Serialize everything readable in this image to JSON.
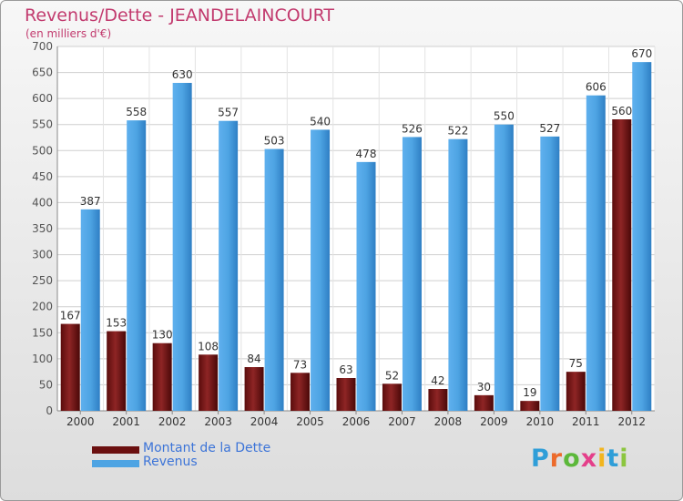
{
  "title": "Revenus/Dette - JEANDELAINCOURT",
  "subtitle": "(en milliers d'€)",
  "brand": {
    "letters": [
      "P",
      "r",
      "o",
      "x",
      "i",
      "t",
      "i"
    ],
    "colors": [
      "#2f9ed8",
      "#ec6a2b",
      "#5cb83a",
      "#e43f8a",
      "#f2b51d",
      "#2f9ed8",
      "#8cc63f"
    ]
  },
  "chart_data": {
    "type": "bar",
    "categories": [
      "2000",
      "2001",
      "2002",
      "2003",
      "2004",
      "2005",
      "2006",
      "2007",
      "2008",
      "2009",
      "2010",
      "2011",
      "2012"
    ],
    "series": [
      {
        "name": "Montant de la Dette",
        "color": "#7a1616",
        "values": [
          167,
          153,
          130,
          108,
          84,
          73,
          63,
          52,
          42,
          30,
          19,
          75,
          560
        ]
      },
      {
        "name": "Revenus",
        "color": "#4ea4e3",
        "values": [
          387,
          558,
          630,
          557,
          503,
          540,
          478,
          526,
          522,
          550,
          527,
          606,
          670
        ]
      }
    ],
    "ylim": [
      0,
      700
    ],
    "yticks": [
      0,
      50,
      100,
      150,
      200,
      250,
      300,
      350,
      400,
      450,
      500,
      550,
      600,
      650,
      700
    ],
    "grid": true,
    "legend_position": "bottom-left"
  }
}
